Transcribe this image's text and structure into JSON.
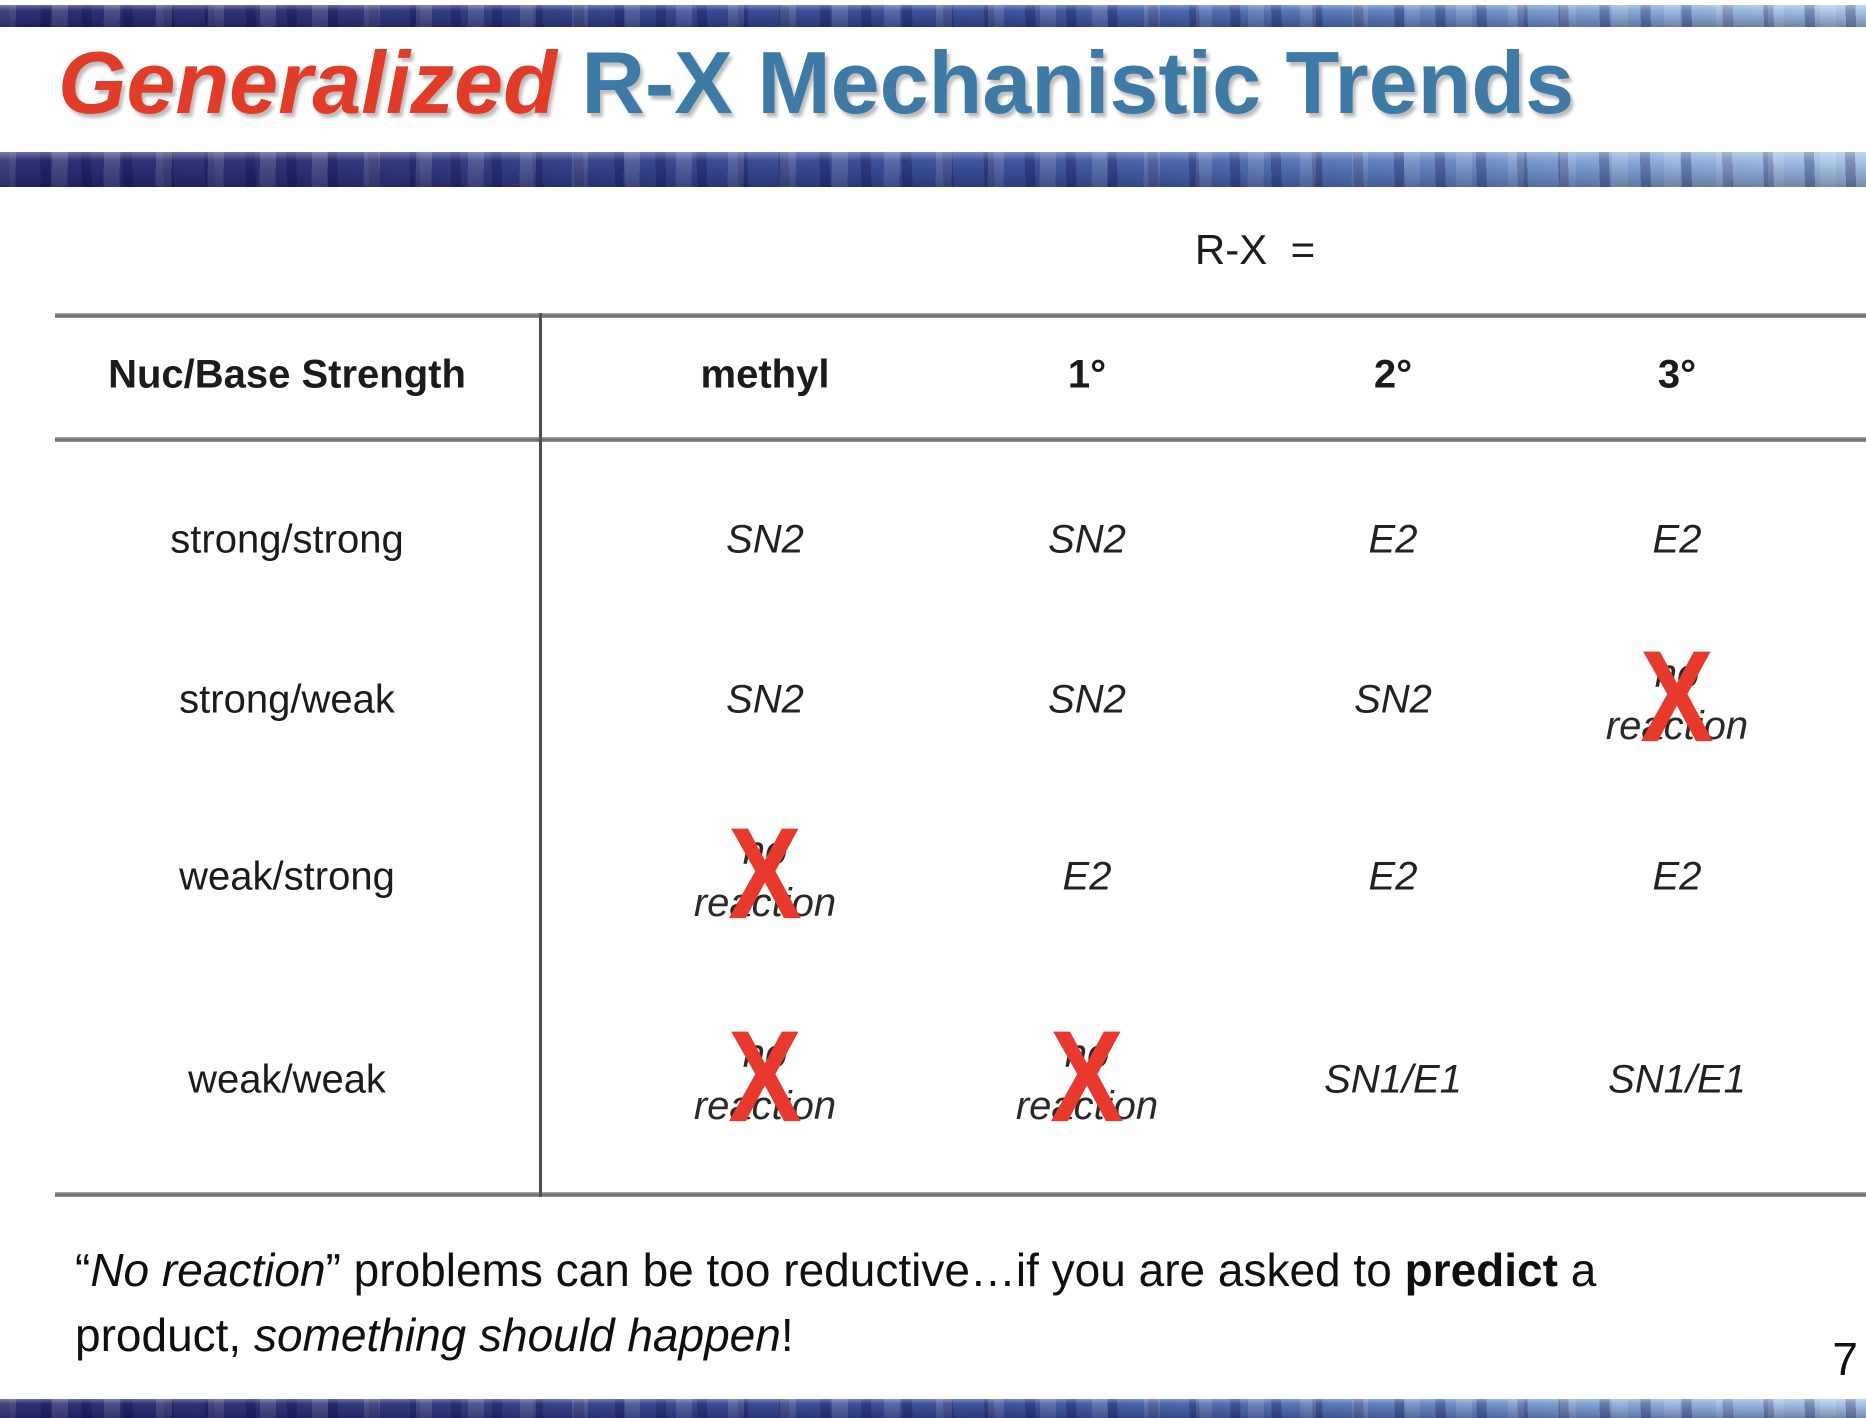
{
  "title": {
    "red_part": "Generalized ",
    "blue_part": "R-X Mechanistic Trends"
  },
  "table": {
    "rx_label": "R-X  =",
    "corner_header": "Nuc/Base Strength",
    "columns": [
      "methyl",
      "1°",
      "2°",
      "3°"
    ],
    "rows": [
      {
        "label": "strong/strong",
        "cells": [
          {
            "v": "SN2"
          },
          {
            "v": "SN2"
          },
          {
            "v": "E2"
          },
          {
            "v": "E2"
          }
        ]
      },
      {
        "label": "strong/weak",
        "cells": [
          {
            "v": "SN2"
          },
          {
            "v": "SN2"
          },
          {
            "v": "SN2"
          },
          {
            "v": "no reaction",
            "crossed": true
          }
        ]
      },
      {
        "label": "weak/strong",
        "cells": [
          {
            "v": "no reaction",
            "crossed": true
          },
          {
            "v": "E2"
          },
          {
            "v": "E2"
          },
          {
            "v": "E2"
          }
        ]
      },
      {
        "label": "weak/weak",
        "cells": [
          {
            "v": "no reaction",
            "crossed": true
          },
          {
            "v": "no reaction",
            "crossed": true
          },
          {
            "v": "SN1/E1"
          },
          {
            "v": "SN1/E1"
          }
        ]
      }
    ],
    "crossed_mark": "X"
  },
  "caption": {
    "line1": [
      {
        "t": "“",
        "s": "n"
      },
      {
        "t": "No reaction",
        "s": "i"
      },
      {
        "t": "” problems can be too reductive…if you are asked to ",
        "s": "n"
      },
      {
        "t": "predict",
        "s": "b"
      },
      {
        "t": " a",
        "s": "n"
      }
    ],
    "line2": [
      {
        "t": "product, ",
        "s": "n"
      },
      {
        "t": "something should happen",
        "s": "i"
      },
      {
        "t": "!",
        "s": "n"
      }
    ]
  },
  "page_number": "7",
  "colors": {
    "title_red": "#e23b28",
    "title_blue": "#3d7aa6",
    "x_red": "#e8392c"
  }
}
